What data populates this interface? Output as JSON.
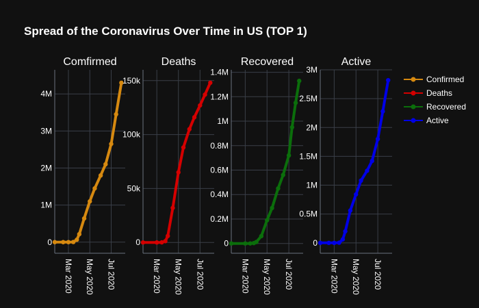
{
  "page": {
    "title": "Spread of the Coronavirus Over Time in US (TOP 1)"
  },
  "chart_data": {
    "type": "line",
    "title": "Spread of the Coronavirus Over Time in US (TOP 1)",
    "x_ticks": [
      {
        "date": "2020-03-01",
        "label": "Mar 2020"
      },
      {
        "date": "2020-05-01",
        "label": "May 2020"
      },
      {
        "date": "2020-07-01",
        "label": "Jul 2020"
      }
    ],
    "xlim": [
      "2020-01-22",
      "2020-08-10"
    ],
    "legend_placement": "right",
    "grid": true,
    "series": [
      {
        "name": "Confirmed",
        "subplot_title": "Comfirmed",
        "color": "#d68910",
        "ylim": [
          -300000,
          4650000
        ],
        "y_ticks": [
          {
            "v": 0,
            "label": "0"
          },
          {
            "v": 1000000,
            "label": "1M"
          },
          {
            "v": 2000000,
            "label": "2M"
          },
          {
            "v": 3000000,
            "label": "3M"
          },
          {
            "v": 4000000,
            "label": "4M"
          }
        ],
        "points": [
          {
            "x": "2020-01-22",
            "y": 0
          },
          {
            "x": "2020-02-15",
            "y": 15
          },
          {
            "x": "2020-03-01",
            "y": 75
          },
          {
            "x": "2020-03-15",
            "y": 3500
          },
          {
            "x": "2020-03-25",
            "y": 65000
          },
          {
            "x": "2020-04-01",
            "y": 215000
          },
          {
            "x": "2020-04-15",
            "y": 640000
          },
          {
            "x": "2020-05-01",
            "y": 1100000
          },
          {
            "x": "2020-05-15",
            "y": 1450000
          },
          {
            "x": "2020-06-01",
            "y": 1800000
          },
          {
            "x": "2020-06-15",
            "y": 2100000
          },
          {
            "x": "2020-07-01",
            "y": 2650000
          },
          {
            "x": "2020-07-15",
            "y": 3450000
          },
          {
            "x": "2020-07-30",
            "y": 4300000
          }
        ]
      },
      {
        "name": "Deaths",
        "subplot_title": "Deaths",
        "color": "#d40000",
        "ylim": [
          -10000,
          160000
        ],
        "y_ticks": [
          {
            "v": 0,
            "label": "0"
          },
          {
            "v": 50000,
            "label": "50k"
          },
          {
            "v": 100000,
            "label": "100k"
          },
          {
            "v": 150000,
            "label": "150k"
          }
        ],
        "points": [
          {
            "x": "2020-01-22",
            "y": 0
          },
          {
            "x": "2020-03-01",
            "y": 1
          },
          {
            "x": "2020-03-15",
            "y": 100
          },
          {
            "x": "2020-03-25",
            "y": 1200
          },
          {
            "x": "2020-04-01",
            "y": 6000
          },
          {
            "x": "2020-04-15",
            "y": 32000
          },
          {
            "x": "2020-05-01",
            "y": 65000
          },
          {
            "x": "2020-05-15",
            "y": 88000
          },
          {
            "x": "2020-06-01",
            "y": 105000
          },
          {
            "x": "2020-06-15",
            "y": 116000
          },
          {
            "x": "2020-07-01",
            "y": 127000
          },
          {
            "x": "2020-07-15",
            "y": 137000
          },
          {
            "x": "2020-07-30",
            "y": 148000
          }
        ]
      },
      {
        "name": "Recovered",
        "subplot_title": "Recovered",
        "color": "#0b6e0b",
        "ylim": [
          -80000,
          1420000
        ],
        "y_ticks": [
          {
            "v": 0,
            "label": "0"
          },
          {
            "v": 200000,
            "label": "0.2M"
          },
          {
            "v": 400000,
            "label": "0.4M"
          },
          {
            "v": 600000,
            "label": "0.6M"
          },
          {
            "v": 800000,
            "label": "0.8M"
          },
          {
            "v": 1000000,
            "label": "1M"
          },
          {
            "v": 1200000,
            "label": "1.2M"
          },
          {
            "v": 1400000,
            "label": "1.4M"
          }
        ],
        "points": [
          {
            "x": "2020-01-22",
            "y": 0
          },
          {
            "x": "2020-03-01",
            "y": 10
          },
          {
            "x": "2020-03-15",
            "y": 200
          },
          {
            "x": "2020-03-25",
            "y": 3000
          },
          {
            "x": "2020-04-01",
            "y": 12000
          },
          {
            "x": "2020-04-15",
            "y": 60000
          },
          {
            "x": "2020-05-01",
            "y": 190000
          },
          {
            "x": "2020-05-15",
            "y": 290000
          },
          {
            "x": "2020-06-01",
            "y": 450000
          },
          {
            "x": "2020-06-15",
            "y": 560000
          },
          {
            "x": "2020-07-01",
            "y": 720000
          },
          {
            "x": "2020-07-10",
            "y": 950000
          },
          {
            "x": "2020-07-20",
            "y": 1150000
          },
          {
            "x": "2020-07-30",
            "y": 1330000
          }
        ]
      },
      {
        "name": "Active",
        "subplot_title": "Active",
        "color": "#0000e6",
        "ylim": [
          -180000,
          3000000
        ],
        "y_ticks": [
          {
            "v": 0,
            "label": "0"
          },
          {
            "v": 500000,
            "label": "0.5M"
          },
          {
            "v": 1000000,
            "label": "1M"
          },
          {
            "v": 1500000,
            "label": "1.5M"
          },
          {
            "v": 2000000,
            "label": "2M"
          },
          {
            "v": 2500000,
            "label": "2.5M"
          },
          {
            "v": 3000000,
            "label": "3M"
          }
        ],
        "points": [
          {
            "x": "2020-01-22",
            "y": 0
          },
          {
            "x": "2020-02-15",
            "y": 10
          },
          {
            "x": "2020-03-01",
            "y": 70
          },
          {
            "x": "2020-03-15",
            "y": 3200
          },
          {
            "x": "2020-03-25",
            "y": 60000
          },
          {
            "x": "2020-04-01",
            "y": 200000
          },
          {
            "x": "2020-04-15",
            "y": 560000
          },
          {
            "x": "2020-05-01",
            "y": 840000
          },
          {
            "x": "2020-05-15",
            "y": 1080000
          },
          {
            "x": "2020-06-01",
            "y": 1250000
          },
          {
            "x": "2020-06-15",
            "y": 1420000
          },
          {
            "x": "2020-07-01",
            "y": 1800000
          },
          {
            "x": "2020-07-15",
            "y": 2280000
          },
          {
            "x": "2020-07-30",
            "y": 2820000
          }
        ]
      }
    ]
  }
}
